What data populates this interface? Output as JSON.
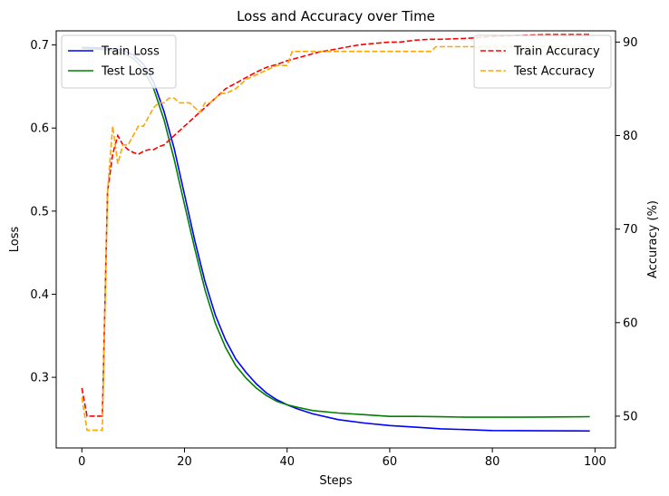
{
  "chart_data": {
    "type": "line",
    "title": "Loss and Accuracy over Time",
    "xlabel": "Steps",
    "ylabel_left": "Loss",
    "ylabel_right": "Accuracy (%)",
    "xlim": [
      -5,
      104
    ],
    "ylim_left": [
      0.215,
      0.717
    ],
    "ylim_right": [
      46.6,
      91.2
    ],
    "x_ticks": [
      0,
      20,
      40,
      60,
      80,
      100
    ],
    "y_ticks_left": [
      0.3,
      0.4,
      0.5,
      0.6,
      0.7
    ],
    "y_ticks_right": [
      50,
      60,
      70,
      80,
      90
    ],
    "y_tick_labels_left": [
      "0.3",
      "0.4",
      "0.5",
      "0.6",
      "0.7"
    ],
    "grid": false,
    "series_left": [
      {
        "name": "Train Loss",
        "color": "#0000ff",
        "style": "solid",
        "points": [
          [
            0,
            0.697
          ],
          [
            5,
            0.696
          ],
          [
            8,
            0.694
          ],
          [
            10,
            0.688
          ],
          [
            12,
            0.677
          ],
          [
            14,
            0.655
          ],
          [
            16,
            0.62
          ],
          [
            18,
            0.575
          ],
          [
            20,
            0.52
          ],
          [
            22,
            0.465
          ],
          [
            24,
            0.415
          ],
          [
            26,
            0.375
          ],
          [
            28,
            0.345
          ],
          [
            30,
            0.322
          ],
          [
            32,
            0.306
          ],
          [
            34,
            0.292
          ],
          [
            36,
            0.281
          ],
          [
            38,
            0.273
          ],
          [
            40,
            0.267
          ],
          [
            42,
            0.262
          ],
          [
            45,
            0.256
          ],
          [
            50,
            0.249
          ],
          [
            55,
            0.245
          ],
          [
            60,
            0.242
          ],
          [
            65,
            0.24
          ],
          [
            70,
            0.238
          ],
          [
            75,
            0.237
          ],
          [
            80,
            0.236
          ],
          [
            85,
            0.2358
          ],
          [
            90,
            0.2356
          ],
          [
            95,
            0.2355
          ],
          [
            99,
            0.2354
          ]
        ]
      },
      {
        "name": "Test Loss",
        "color": "#008000",
        "style": "solid",
        "points": [
          [
            0,
            0.696
          ],
          [
            5,
            0.694
          ],
          [
            8,
            0.69
          ],
          [
            10,
            0.684
          ],
          [
            12,
            0.671
          ],
          [
            14,
            0.647
          ],
          [
            16,
            0.61
          ],
          [
            18,
            0.562
          ],
          [
            20,
            0.508
          ],
          [
            22,
            0.455
          ],
          [
            24,
            0.405
          ],
          [
            26,
            0.365
          ],
          [
            28,
            0.336
          ],
          [
            30,
            0.314
          ],
          [
            32,
            0.299
          ],
          [
            34,
            0.287
          ],
          [
            36,
            0.278
          ],
          [
            38,
            0.271
          ],
          [
            40,
            0.267
          ],
          [
            42,
            0.264
          ],
          [
            45,
            0.26
          ],
          [
            50,
            0.257
          ],
          [
            55,
            0.255
          ],
          [
            60,
            0.253
          ],
          [
            65,
            0.253
          ],
          [
            70,
            0.2525
          ],
          [
            75,
            0.252
          ],
          [
            80,
            0.252
          ],
          [
            85,
            0.252
          ],
          [
            90,
            0.2522
          ],
          [
            95,
            0.2524
          ],
          [
            99,
            0.2526
          ]
        ]
      }
    ],
    "series_right": [
      {
        "name": "Train Accuracy",
        "color": "#ff0000",
        "style": "dashed",
        "points": [
          [
            0,
            53
          ],
          [
            1,
            50
          ],
          [
            2,
            50
          ],
          [
            3,
            50
          ],
          [
            4,
            50
          ],
          [
            5,
            74
          ],
          [
            6,
            78
          ],
          [
            7,
            80
          ],
          [
            8,
            79
          ],
          [
            9,
            78.5
          ],
          [
            10,
            78.2
          ],
          [
            11,
            78
          ],
          [
            12,
            78.3
          ],
          [
            13,
            78.5
          ],
          [
            14,
            78.5
          ],
          [
            15,
            78.8
          ],
          [
            16,
            79
          ],
          [
            17,
            79.5
          ],
          [
            18,
            80
          ],
          [
            20,
            81
          ],
          [
            22,
            82
          ],
          [
            24,
            83
          ],
          [
            26,
            84
          ],
          [
            28,
            85
          ],
          [
            30,
            85.6
          ],
          [
            32,
            86.2
          ],
          [
            34,
            86.8
          ],
          [
            36,
            87.3
          ],
          [
            38,
            87.6
          ],
          [
            40,
            88
          ],
          [
            42,
            88.3
          ],
          [
            44,
            88.6
          ],
          [
            46,
            88.9
          ],
          [
            48,
            89.1
          ],
          [
            50,
            89.3
          ],
          [
            52,
            89.5
          ],
          [
            54,
            89.7
          ],
          [
            56,
            89.8
          ],
          [
            58,
            89.9
          ],
          [
            60,
            90
          ],
          [
            62,
            90
          ],
          [
            65,
            90.2
          ],
          [
            68,
            90.3
          ],
          [
            70,
            90.3
          ],
          [
            75,
            90.4
          ],
          [
            78,
            90.5
          ],
          [
            80,
            90.6
          ],
          [
            85,
            90.7
          ],
          [
            90,
            90.8
          ],
          [
            95,
            90.8
          ],
          [
            99,
            90.8
          ]
        ]
      },
      {
        "name": "Test Accuracy",
        "color": "#ffa500",
        "style": "dashed",
        "points": [
          [
            0,
            52
          ],
          [
            1,
            48.5
          ],
          [
            2,
            48.5
          ],
          [
            3,
            48.5
          ],
          [
            4,
            48.5
          ],
          [
            5,
            74
          ],
          [
            6,
            81
          ],
          [
            7,
            77
          ],
          [
            8,
            79
          ],
          [
            9,
            79
          ],
          [
            10,
            80
          ],
          [
            11,
            81
          ],
          [
            12,
            81
          ],
          [
            13,
            82
          ],
          [
            14,
            83
          ],
          [
            15,
            83.5
          ],
          [
            16,
            83.5
          ],
          [
            17,
            84
          ],
          [
            18,
            84
          ],
          [
            19,
            83.5
          ],
          [
            20,
            83.5
          ],
          [
            21,
            83.5
          ],
          [
            22,
            83
          ],
          [
            23,
            82.5
          ],
          [
            24,
            83.5
          ],
          [
            25,
            83.5
          ],
          [
            26,
            84
          ],
          [
            27,
            84.5
          ],
          [
            28,
            84.5
          ],
          [
            30,
            85
          ],
          [
            32,
            86
          ],
          [
            34,
            86.5
          ],
          [
            36,
            87
          ],
          [
            38,
            87.5
          ],
          [
            40,
            87.5
          ],
          [
            41,
            89
          ],
          [
            45,
            89
          ],
          [
            50,
            89
          ],
          [
            55,
            89
          ],
          [
            60,
            89
          ],
          [
            65,
            89
          ],
          [
            68,
            89
          ],
          [
            69,
            89.5
          ],
          [
            75,
            89.5
          ],
          [
            80,
            89.5
          ],
          [
            85,
            89.5
          ],
          [
            90,
            89.5
          ],
          [
            95,
            89.5
          ],
          [
            99,
            89.5
          ]
        ]
      }
    ],
    "legend_left": {
      "placement": "upper-left",
      "entries": [
        "Train Loss",
        "Test Loss"
      ]
    },
    "legend_right": {
      "placement": "upper-right",
      "entries": [
        "Train Accuracy",
        "Test Accuracy"
      ]
    }
  }
}
